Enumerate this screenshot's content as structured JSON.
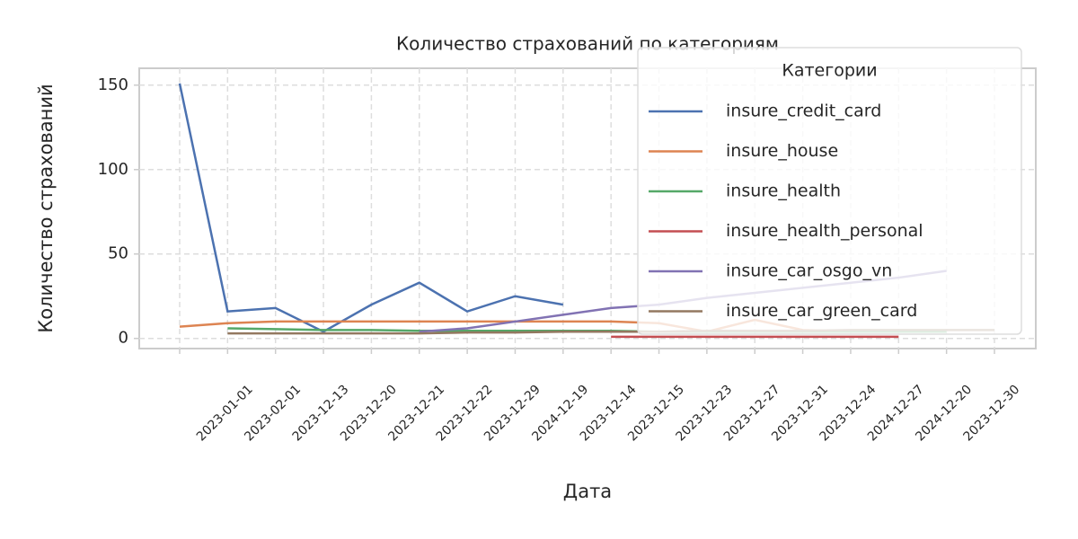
{
  "chart_data": {
    "type": "line",
    "title": "Количество страхований по категориям",
    "xlabel": "Дата",
    "ylabel": "Количество страхований",
    "categories": [
      null,
      "2023-01-01",
      "2023-02-01",
      "2023-12-13",
      "2023-12-20",
      "2023-12-21",
      "2023-12-22",
      "2023-12-29",
      "2024-12-19",
      "2023-12-14",
      "2023-12-15",
      "2023-12-23",
      "2023-12-27",
      "2023-12-31",
      "2023-12-24",
      "2024-12-27",
      "2024-12-20",
      "2023-12-30"
    ],
    "series": [
      {
        "name": "insure_credit_card",
        "color": "#4c72b0",
        "values": [
          151,
          16,
          18,
          4,
          20,
          33,
          16,
          25,
          20,
          null,
          null,
          null,
          null,
          null,
          null,
          null,
          null,
          null
        ]
      },
      {
        "name": "insure_house",
        "color": "#dd8452",
        "values": [
          7,
          9,
          10,
          10,
          10,
          10,
          10,
          10,
          10,
          10,
          9,
          4,
          11,
          5,
          4,
          4,
          null,
          null
        ]
      },
      {
        "name": "insure_health",
        "color": "#55a868",
        "values": [
          null,
          6,
          5.5,
          5,
          5,
          4.5,
          4.5,
          4.5,
          4.5,
          4.5,
          4,
          4,
          4,
          4,
          4,
          4,
          4,
          null
        ]
      },
      {
        "name": "insure_health_personal",
        "color": "#c44e52",
        "values": [
          null,
          null,
          null,
          null,
          null,
          null,
          null,
          null,
          null,
          1,
          1,
          1,
          1,
          1,
          1,
          1,
          null,
          null
        ]
      },
      {
        "name": "insure_car_osgo_vn",
        "color": "#8172b3",
        "values": [
          null,
          null,
          null,
          null,
          null,
          4,
          6,
          10,
          14,
          18,
          20,
          24,
          27,
          30,
          33,
          36,
          40,
          null
        ]
      },
      {
        "name": "insure_car_green_card",
        "color": "#937860",
        "values": [
          null,
          3,
          3,
          3,
          3,
          3,
          3.5,
          3.5,
          4,
          4,
          4,
          4.5,
          4.5,
          4.5,
          5,
          5,
          5,
          5
        ]
      }
    ],
    "ylim": [
      -6,
      160
    ],
    "yticks": [
      0,
      50,
      100,
      150
    ],
    "grid": true,
    "legend_title": "Категории",
    "legend_position": "upper right"
  }
}
